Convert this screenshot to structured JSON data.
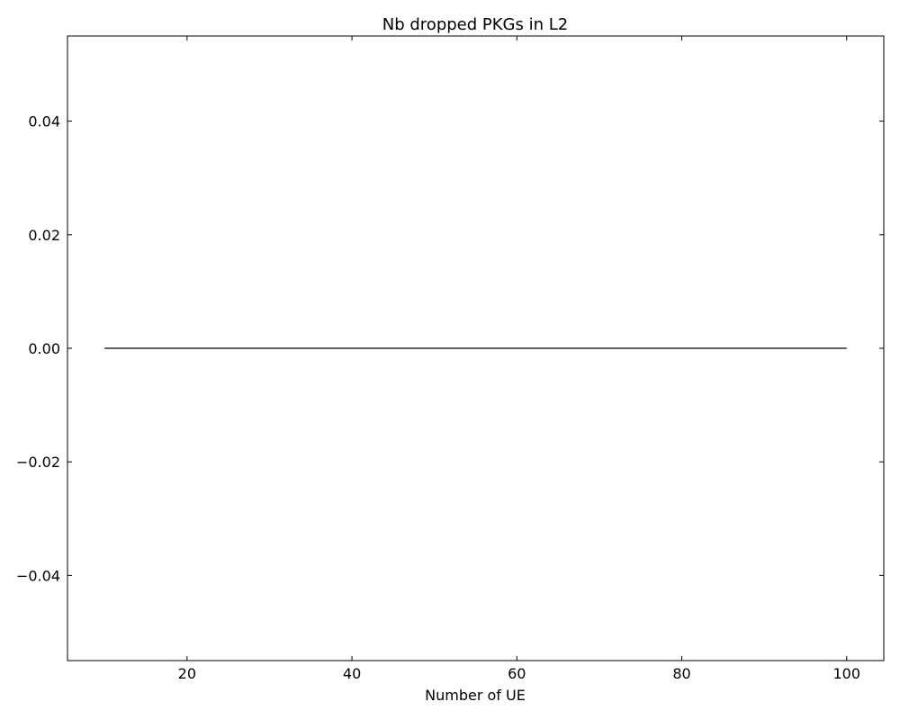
{
  "chart_data": {
    "type": "line",
    "title": "Nb dropped PKGs in L2",
    "xlabel": "Number of UE",
    "ylabel": "",
    "xlim": [
      5.5,
      104.5
    ],
    "ylim": [
      -0.055,
      0.055
    ],
    "xticks": [
      20,
      40,
      60,
      80,
      100
    ],
    "xtick_labels": [
      "20",
      "40",
      "60",
      "80",
      "100"
    ],
    "yticks": [
      -0.04,
      -0.02,
      0.0,
      0.02,
      0.04
    ],
    "ytick_labels": [
      "−0.04",
      "−0.02",
      "0.00",
      "0.02",
      "0.04"
    ],
    "grid": false,
    "series": [
      {
        "color": "#000000",
        "x": [
          10,
          100
        ],
        "y": [
          0,
          0
        ]
      }
    ]
  }
}
